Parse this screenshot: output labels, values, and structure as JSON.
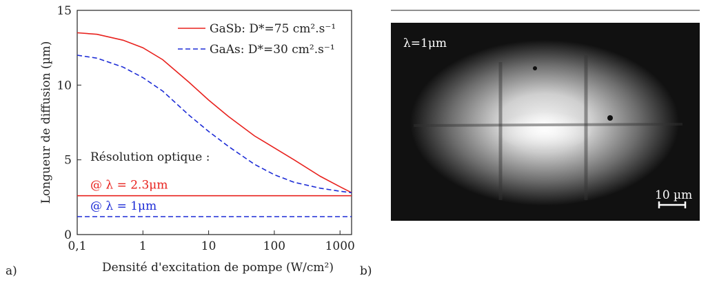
{
  "chart_data": {
    "type": "line",
    "ylabel": "Longueur de diffusion (µm)",
    "xlabel": "Densité d'excitation de pompe (W/cm²)",
    "xscale": "log",
    "xlim": [
      0.1,
      1500
    ],
    "ylim": [
      0,
      15
    ],
    "xticks": [
      {
        "value": 0.1,
        "label": "0,1"
      },
      1,
      10,
      100,
      1000
    ],
    "yticks": [
      0,
      5,
      10,
      15
    ],
    "legend": "upper right",
    "x": [
      0.1,
      0.2,
      0.5,
      1,
      2,
      5,
      10,
      20,
      50,
      100,
      200,
      500,
      1000,
      1500
    ],
    "series": [
      {
        "name": "GaSb: D*=75 cm².s⁻¹",
        "color": "#e8211d",
        "linestyle": "solid",
        "values": [
          13.5,
          13.4,
          13.0,
          12.5,
          11.7,
          10.2,
          9.0,
          7.9,
          6.6,
          5.8,
          5.0,
          3.9,
          3.2,
          2.8
        ]
      },
      {
        "name": "GaAs: D*=30 cm².s⁻¹",
        "color": "#1c2bd6",
        "linestyle": "dashed",
        "values": [
          12.0,
          11.8,
          11.2,
          10.5,
          9.6,
          8.0,
          6.9,
          5.9,
          4.7,
          4.0,
          3.5,
          3.1,
          2.9,
          2.8
        ]
      }
    ],
    "annotation": "Résolution optique :",
    "reference_lines": [
      {
        "label": "@ λ = 2.3μm",
        "value": 2.6,
        "color": "#e8211d",
        "linestyle": "solid"
      },
      {
        "label": "@ λ = 1μm",
        "value": 1.2,
        "color": "#1c2bd6",
        "linestyle": "dashed"
      }
    ]
  },
  "panels": {
    "a": "a)",
    "b": "b)"
  },
  "image": {
    "label": "λ=1μm",
    "scale_bar": "10 µm"
  }
}
